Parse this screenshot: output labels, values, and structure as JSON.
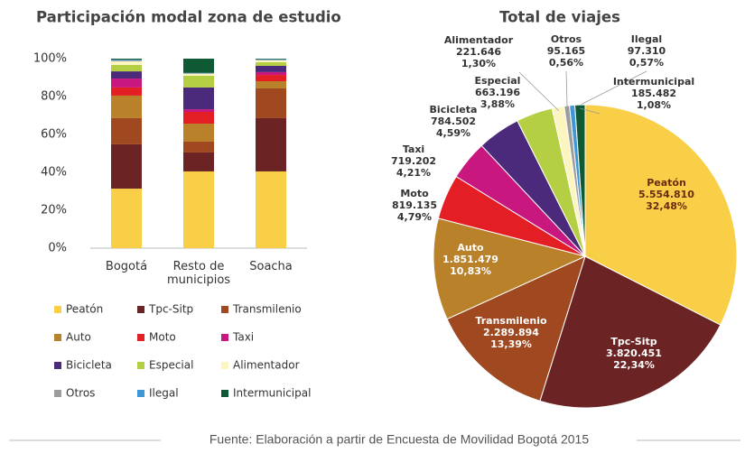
{
  "chart_data": [
    {
      "type": "stacked_bar",
      "title": "Participación modal zona de  estudio",
      "categories": [
        "Bogotá",
        "Resto de municipios",
        "Soacha"
      ],
      "ylim": [
        0,
        100
      ],
      "yticks": [
        {
          "value": 0,
          "label": "0%"
        },
        {
          "value": 20,
          "label": "20%"
        },
        {
          "value": 40,
          "label": "40%"
        },
        {
          "value": 60,
          "label": "60%"
        },
        {
          "value": 80,
          "label": "80%"
        },
        {
          "value": 100,
          "label": "100%"
        }
      ],
      "legend": "bottom",
      "series": [
        {
          "name": "Peatón",
          "color": "#f9cf48",
          "values": [
            31.4,
            40.5,
            40.5
          ]
        },
        {
          "name": "Tpc-Sitp",
          "color": "#6b2423",
          "values": [
            23.4,
            10,
            28.1
          ]
        },
        {
          "name": "Transmilenio",
          "color": "#a0481f",
          "values": [
            13.8,
            5.7,
            15.7
          ]
        },
        {
          "name": "Auto",
          "color": "#b9812a",
          "values": [
            11.9,
            9.5,
            3.8
          ]
        },
        {
          "name": "Moto",
          "color": "#e31e24",
          "values": [
            4.3,
            6.2,
            3.3
          ]
        },
        {
          "name": "Taxi",
          "color": "#c8177f",
          "values": [
            4.7,
            1.4,
            1.5
          ]
        },
        {
          "name": "Bicicleta",
          "color": "#4b2a7b",
          "values": [
            3.8,
            11.5,
            3.3
          ]
        },
        {
          "name": "Especial",
          "color": "#b5cf45",
          "values": [
            3.4,
            6.2,
            1.9
          ]
        },
        {
          "name": "Alimentador",
          "color": "#fdf5c0",
          "values": [
            1.9,
            1,
            1
          ]
        },
        {
          "name": "Otros",
          "color": "#9d9d9d",
          "values": [
            0.5,
            0.3,
            0.3
          ]
        },
        {
          "name": "Ilegal",
          "color": "#3f98d4",
          "values": [
            0.4,
            0.2,
            0.3
          ]
        },
        {
          "name": "Intermunicipal",
          "color": "#0f5a35",
          "values": [
            0.5,
            7.5,
            0.3
          ]
        }
      ]
    },
    {
      "type": "pie",
      "title": "Total de viajes",
      "categories": [
        "Peatón",
        "Tpc-Sitp",
        "Transmilenio",
        "Auto",
        "Moto",
        "Taxi",
        "Bicicleta",
        "Especial",
        "Alimentador",
        "Otros",
        "Ilegal",
        "Intermunicipal"
      ],
      "values": [
        5554810,
        3820451,
        2289894,
        1851479,
        819135,
        719202,
        784502,
        663196,
        221646,
        95165,
        97310,
        185482
      ],
      "value_labels": [
        "5.554.810",
        "3.820.451",
        "2.289.894",
        "1.851.479",
        "819.135",
        "719.202",
        "784.502",
        "663.196",
        "221.646",
        "95.165",
        "97.310",
        "185.482"
      ],
      "percents": [
        32.48,
        22.34,
        13.39,
        10.83,
        4.79,
        4.21,
        4.59,
        3.88,
        1.3,
        0.56,
        0.57,
        1.08
      ],
      "percent_labels": [
        "32,48%",
        "22,34%",
        "13,39%",
        "10,83%",
        "4,79%",
        "4,21%",
        "4,59%",
        "3,88%",
        "1,30%",
        "0,56%",
        "0,57%",
        "1,08%"
      ],
      "colors": [
        "#f9cf48",
        "#6b2423",
        "#a0481f",
        "#b9812a",
        "#e31e24",
        "#c8177f",
        "#4b2a7b",
        "#b5cf45",
        "#fdf5c0",
        "#9d9d9d",
        "#3f98d4",
        "#0f5a35"
      ]
    }
  ],
  "source": "Fuente: Elaboración a partir de Encuesta de Movilidad Bogotá 2015"
}
